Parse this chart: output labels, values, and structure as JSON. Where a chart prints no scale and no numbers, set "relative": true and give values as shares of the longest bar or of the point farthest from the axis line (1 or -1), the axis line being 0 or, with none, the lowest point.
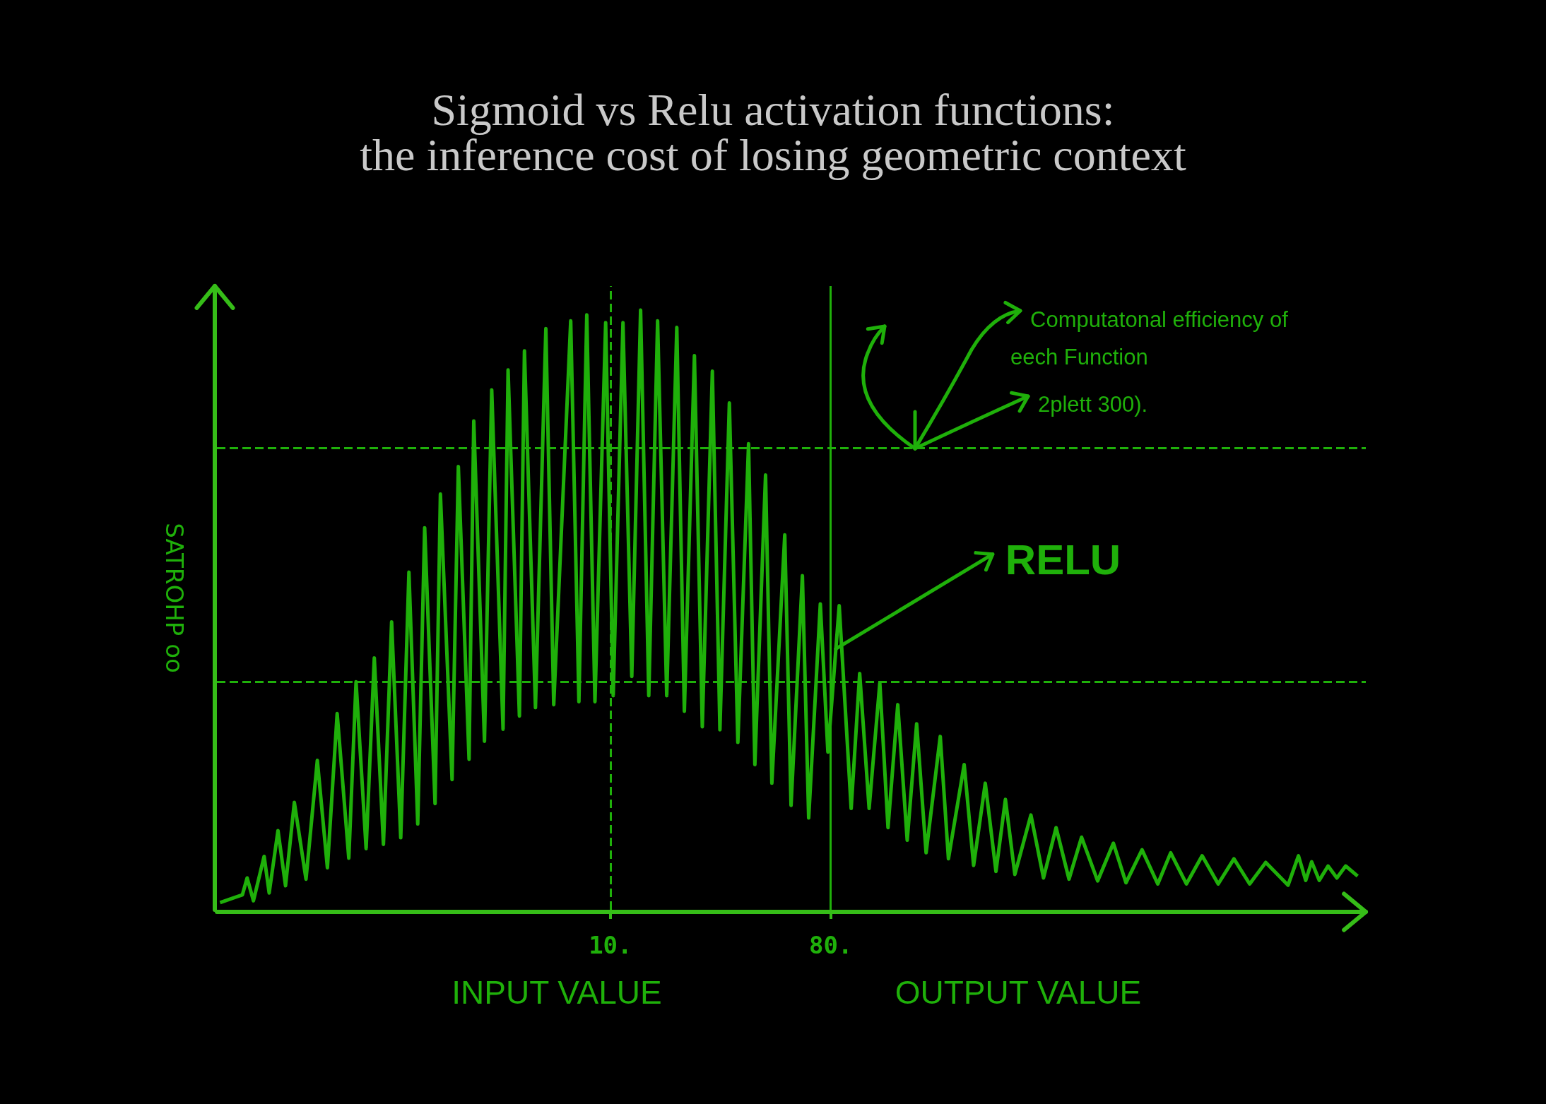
{
  "chart_data": {
    "type": "line",
    "title": "Sigmoid vs Relu activation functions:\nthe inference cost of losing geometric context",
    "xlabel": "INPUT VALUE",
    "ylabel": "SATROHP oo",
    "relative": true,
    "xlim": [
      -115,
      250
    ],
    "xticks": [
      {
        "value": 10,
        "label": "10."
      },
      {
        "value": 80,
        "label": "80."
      }
    ],
    "x": [
      -114,
      -106.9,
      -105.4,
      -103.4,
      -100,
      -98.4,
      -95.6,
      -93.2,
      -90.4,
      -86.7,
      -83.1,
      -79.9,
      -76.8,
      -73.1,
      -70.8,
      -67.6,
      -65,
      -62.1,
      -59.5,
      -56.6,
      -54,
      -51.2,
      -49,
      -45.7,
      -44,
      -40.3,
      -38.3,
      -34.9,
      -33.4,
      -30,
      -27.7,
      -24.1,
      -22.5,
      -18.9,
      -17.3,
      -13.8,
      -10.5,
      -8,
      -2.6,
      0,
      2.5,
      5.1,
      8.5,
      10.9,
      14,
      16.8,
      19.6,
      22.2,
      25,
      27.9,
      31.1,
      33.5,
      36.7,
      39.2,
      42.4,
      44.8,
      47.8,
      50.5,
      53.9,
      55.9,
      59.3,
      61.3,
      65.4,
      67.4,
      71,
      73,
      76.7,
      79.1,
      82.7,
      86.5,
      89.2,
      92.2,
      95.6,
      98.2,
      101.3,
      104.3,
      107.3,
      110.3,
      114.8,
      117.4,
      122.4,
      125.4,
      129.1,
      132.5,
      135.5,
      138.5,
      143.6,
      147.6,
      151.6,
      155.7,
      159.7,
      164.8,
      169.8,
      173.8,
      178.9,
      183.9,
      188,
      193,
      198,
      203.1,
      208.1,
      213.1,
      218.2,
      225.3,
      228.6,
      230.9,
      232.8,
      235.2,
      238,
      240.8,
      243.6,
      247.4
    ],
    "series": [
      {
        "color": "#1fb00a",
        "values": [
          0.012,
          0.025,
          0.053,
          0.015,
          0.089,
          0.028,
          0.132,
          0.04,
          0.179,
          0.051,
          0.249,
          0.07,
          0.327,
          0.086,
          0.38,
          0.102,
          0.42,
          0.109,
          0.48,
          0.12,
          0.563,
          0.143,
          0.637,
          0.177,
          0.693,
          0.217,
          0.739,
          0.251,
          0.815,
          0.281,
          0.867,
          0.301,
          0.9,
          0.323,
          0.932,
          0.337,
          0.969,
          0.342,
          0.982,
          0.347,
          0.992,
          0.347,
          0.979,
          0.357,
          0.979,
          0.389,
          1.0,
          0.357,
          0.982,
          0.357,
          0.971,
          0.331,
          0.924,
          0.305,
          0.898,
          0.3,
          0.845,
          0.279,
          0.777,
          0.242,
          0.725,
          0.211,
          0.625,
          0.174,
          0.557,
          0.153,
          0.51,
          0.263,
          0.507,
          0.169,
          0.394,
          0.169,
          0.378,
          0.137,
          0.342,
          0.116,
          0.31,
          0.095,
          0.289,
          0.085,
          0.242,
          0.074,
          0.211,
          0.064,
          0.184,
          0.059,
          0.158,
          0.053,
          0.137,
          0.051,
          0.121,
          0.048,
          0.111,
          0.045,
          0.1,
          0.043,
          0.095,
          0.043,
          0.09,
          0.043,
          0.085,
          0.043,
          0.079,
          0.041,
          0.09,
          0.049,
          0.08,
          0.049,
          0.073,
          0.053,
          0.073,
          0.056
        ]
      }
    ],
    "ref_lines": [
      {
        "axis": "x",
        "value": 10,
        "color": "#1fb00a",
        "line_style": "dashed"
      },
      {
        "axis": "x",
        "value": 80,
        "color": "#1fb00a",
        "line_style": "solid"
      },
      {
        "axis": "y",
        "value": 0.769,
        "color": "#1fb00a",
        "line_style": "dashed"
      },
      {
        "axis": "y",
        "value": 0.38,
        "color": "#1fb00a",
        "line_style": "dashed"
      }
    ],
    "annotations": [
      {
        "text": "RELU",
        "x": 81.6,
        "y": 0.435
      },
      "Computatonal efficiency of eech Function",
      "2plett 300).",
      "OUTPUT VALUE"
    ]
  }
}
